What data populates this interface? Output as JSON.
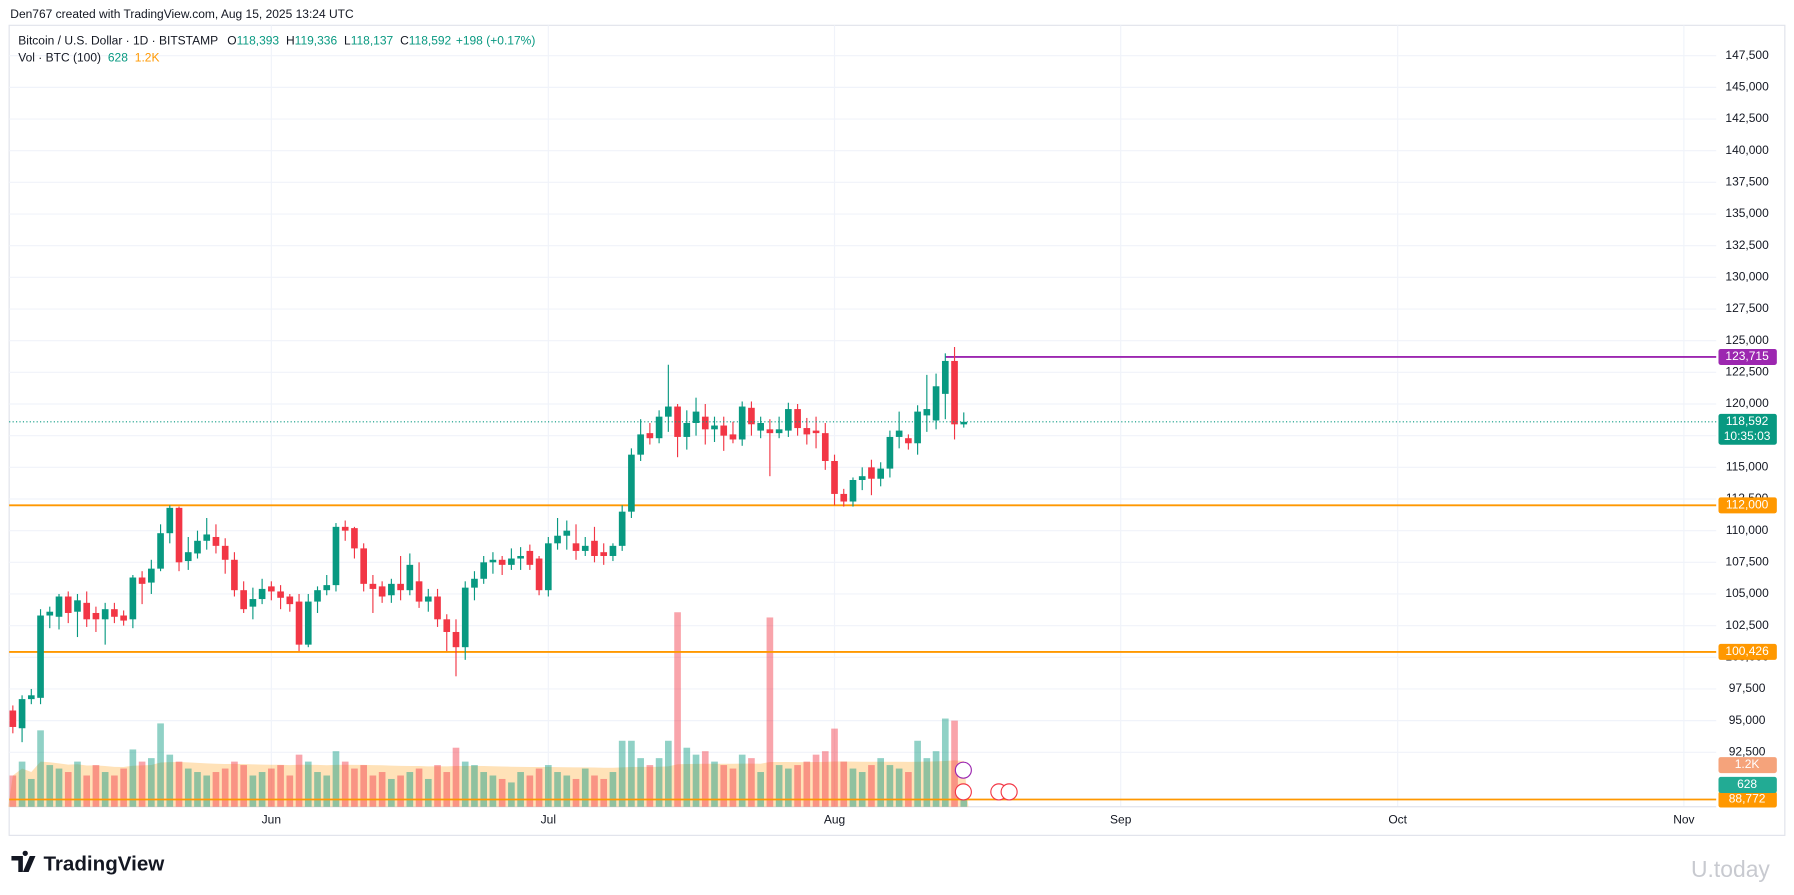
{
  "header": "Den767 created with TradingView.com, Aug 15, 2025 13:24 UTC",
  "branding": "TradingView",
  "watermark": "U.today",
  "chart_data": {
    "type": "candlestick",
    "symbol": "Bitcoin / U.S. Dollar · 1D · BITSTAMP",
    "up_color": "#089981",
    "down_color": "#f23645",
    "grid": true,
    "open": [
      95800,
      94400,
      96700,
      96800,
      103300,
      103200,
      104800,
      103600,
      104300,
      103500,
      103000,
      103800,
      103300,
      103000,
      106300,
      105900,
      107000,
      109800,
      111800,
      107600,
      108200,
      109200,
      109500,
      108800,
      107700,
      105300,
      104000,
      104600,
      105600,
      105200,
      104800,
      104400,
      101000,
      104400,
      105300,
      105700,
      110300,
      110200,
      108600,
      105800,
      105600,
      104900,
      105800,
      105300,
      106000,
      104400,
      104800,
      103000,
      102000,
      100800,
      105500,
      106200,
      107500,
      107700,
      107300,
      107800,
      108400,
      107800,
      105300,
      109000,
      109600,
      109000,
      108400,
      109200,
      108300,
      108000,
      108800,
      111500,
      116000,
      117700,
      117300,
      119000,
      119800,
      117400,
      118500,
      119000,
      118000,
      118300,
      117600,
      117200,
      119700,
      117900,
      118000,
      117700,
      117900,
      119600,
      118100,
      117900,
      117700,
      115500,
      112900,
      112300,
      114000,
      115000,
      114100,
      114900,
      117400,
      117300,
      116900,
      119100,
      118700,
      120800,
      123400,
      118393
    ],
    "high": [
      96200,
      97000,
      97500,
      103800,
      104000,
      105000,
      105200,
      105000,
      105200,
      104000,
      104300,
      104300,
      103700,
      106500,
      106800,
      107700,
      110500,
      112000,
      111900,
      109500,
      110000,
      111000,
      110500,
      109400,
      108300,
      106000,
      105500,
      106200,
      106000,
      105700,
      105000,
      105000,
      105000,
      105600,
      106500,
      110600,
      110800,
      110300,
      109000,
      106500,
      106000,
      106200,
      108000,
      108200,
      107500,
      105400,
      105400,
      103400,
      103000,
      106000,
      106800,
      108000,
      108300,
      108000,
      108600,
      108700,
      108900,
      108000,
      109500,
      111000,
      110800,
      110500,
      109500,
      110300,
      109000,
      109000,
      112000,
      116500,
      118800,
      118500,
      119500,
      123100,
      120000,
      119500,
      120500,
      120000,
      119000,
      119000,
      118600,
      120200,
      120200,
      119000,
      118800,
      119000,
      120100,
      120000,
      118900,
      119000,
      118500,
      116000,
      113300,
      114200,
      115000,
      115600,
      115400,
      117900,
      119400,
      117600,
      119900,
      122300,
      122400,
      124000,
      124500,
      119336
    ],
    "low": [
      94000,
      93300,
      96300,
      96300,
      102300,
      102200,
      102700,
      101600,
      102400,
      102000,
      101000,
      102700,
      102500,
      102300,
      104200,
      105000,
      106800,
      109000,
      106800,
      106900,
      107800,
      108500,
      108200,
      106600,
      104800,
      103500,
      103000,
      104200,
      104500,
      103800,
      103600,
      100500,
      100800,
      103500,
      104900,
      105200,
      109200,
      107800,
      105200,
      103500,
      104300,
      104300,
      104500,
      104900,
      103900,
      103600,
      102400,
      100500,
      98500,
      99800,
      104500,
      105800,
      106600,
      106500,
      106900,
      106900,
      106900,
      104900,
      104800,
      108500,
      108500,
      107700,
      108000,
      107500,
      107300,
      107600,
      108400,
      111000,
      115500,
      116800,
      116900,
      117800,
      115800,
      116400,
      117500,
      116800,
      117000,
      116300,
      116900,
      116700,
      117500,
      117300,
      114300,
      117300,
      117400,
      117500,
      116800,
      116500,
      114800,
      112000,
      111900,
      111900,
      113200,
      112800,
      113500,
      114200,
      116500,
      116400,
      116000,
      117800,
      118000,
      118800,
      117200,
      118137
    ],
    "close": [
      94500,
      96700,
      97000,
      103300,
      103600,
      104800,
      103500,
      104500,
      103000,
      103000,
      103800,
      103200,
      102900,
      106300,
      105800,
      107000,
      109800,
      111800,
      107500,
      108300,
      109200,
      109700,
      108800,
      107700,
      105300,
      103800,
      104600,
      105400,
      105200,
      104700,
      104200,
      101000,
      104400,
      105300,
      105700,
      110300,
      110000,
      108600,
      105800,
      105400,
      104800,
      105800,
      105300,
      107300,
      104400,
      104800,
      103000,
      102000,
      100800,
      105500,
      106200,
      107500,
      107700,
      107300,
      107800,
      108000,
      107300,
      105300,
      109000,
      109600,
      110000,
      108400,
      108800,
      108000,
      108000,
      108800,
      111500,
      116000,
      117600,
      117300,
      119000,
      119800,
      117400,
      118500,
      119400,
      118000,
      118300,
      117500,
      117200,
      119800,
      118400,
      118500,
      117700,
      118000,
      119600,
      118100,
      117600,
      117700,
      115500,
      112900,
      112300,
      114000,
      114300,
      114100,
      114900,
      117400,
      117900,
      116900,
      119400,
      119600,
      121400,
      123400,
      118394,
      118592
    ],
    "volume": [
      900,
      1300,
      800,
      2200,
      1200,
      1100,
      1000,
      1300,
      900,
      1200,
      1000,
      900,
      1100,
      1650,
      1300,
      1400,
      2400,
      1500,
      1300,
      1100,
      1000,
      900,
      1000,
      1100,
      1300,
      1200,
      900,
      1000,
      1100,
      1200,
      900,
      1500,
      1300,
      1000,
      900,
      1600,
      1300,
      1100,
      1200,
      900,
      1000,
      800,
      900,
      1000,
      1100,
      800,
      1200,
      1000,
      1700,
      1300,
      1200,
      1000,
      900,
      800,
      700,
      1000,
      900,
      1100,
      1200,
      1000,
      900,
      800,
      1100,
      900,
      800,
      1000,
      1900,
      1900,
      1400,
      1200,
      1400,
      1900,
      5600,
      1700,
      1500,
      1600,
      1300,
      1200,
      1100,
      1500,
      1400,
      1000,
      5450,
      1200,
      1100,
      1200,
      1300,
      1500,
      1600,
      2250,
      1300,
      1100,
      1000,
      1200,
      1400,
      1200,
      1100,
      1000,
      1900,
      1400,
      1600,
      2540,
      2480,
      628
    ],
    "legend": {
      "open": {
        "key": "O",
        "label": "118,393"
      },
      "high": {
        "key": "H",
        "label": "119,336"
      },
      "low": {
        "key": "L",
        "label": "118,137"
      },
      "close": {
        "key": "C",
        "label": "118,592"
      },
      "change": {
        "value": 198,
        "label": "+198"
      },
      "change_pct": {
        "value": 0.17,
        "label": "(+0.17%)"
      }
    },
    "countdown": "10:35:03",
    "volume_legend": {
      "title": "Vol · BTC (100)",
      "last": "628",
      "ma": {
        "value": 1200,
        "label": "1.2K"
      }
    },
    "levels": [
      {
        "value": 123715,
        "label": "123,715",
        "color": "#9c27b0"
      },
      {
        "value": 112000,
        "label": "112,000",
        "color": "#ff9800"
      },
      {
        "value": 100426,
        "label": "100,426",
        "color": "#ff9800"
      },
      {
        "value": 88772,
        "label": "88,772",
        "color": "#ff9800"
      }
    ],
    "ylim": [
      88200,
      149900
    ],
    "yticks": [
      {
        "value": 92500,
        "label": "92,500"
      },
      {
        "value": 95000,
        "label": "95,000"
      },
      {
        "value": 97500,
        "label": "97,500"
      },
      {
        "value": 100000,
        "label": "100,000"
      },
      {
        "value": 102500,
        "label": "102,500"
      },
      {
        "value": 105000,
        "label": "105,000"
      },
      {
        "value": 107500,
        "label": "107,500"
      },
      {
        "value": 110000,
        "label": "110,000"
      },
      {
        "value": 112500,
        "label": "112,500"
      },
      {
        "value": 115000,
        "label": "115,000"
      },
      {
        "value": 117500,
        "label": "117,500"
      },
      {
        "value": 120000,
        "label": "120,000"
      },
      {
        "value": 122500,
        "label": "122,500"
      },
      {
        "value": 125000,
        "label": "125,000"
      },
      {
        "value": 127500,
        "label": "127,500"
      },
      {
        "value": 130000,
        "label": "130,000"
      },
      {
        "value": 132500,
        "label": "132,500"
      },
      {
        "value": 135000,
        "label": "135,000"
      },
      {
        "value": 137500,
        "label": "137,500"
      },
      {
        "value": 140000,
        "label": "140,000"
      },
      {
        "value": 142500,
        "label": "142,500"
      },
      {
        "value": 145000,
        "label": "145,000"
      },
      {
        "value": 147500,
        "label": "147,500"
      }
    ],
    "xlim": [
      -0.4,
      184.5
    ],
    "xticks": [
      {
        "value": 28,
        "label": "Jun"
      },
      {
        "value": 58,
        "label": "Jul"
      },
      {
        "value": 89,
        "label": "Aug"
      },
      {
        "value": 120,
        "label": "Sep"
      },
      {
        "value": 150,
        "label": "Oct"
      },
      {
        "value": 181,
        "label": "Nov"
      }
    ]
  }
}
